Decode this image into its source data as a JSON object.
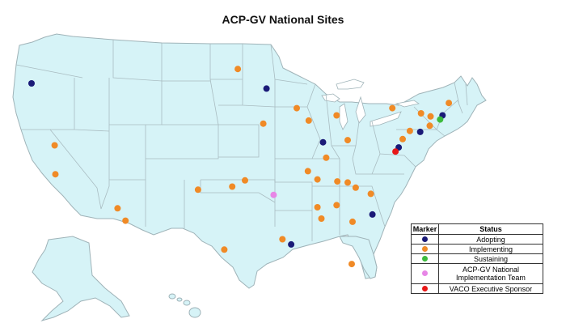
{
  "title": "ACP-GV National Sites",
  "colors": {
    "land": "#d6f3f7",
    "border": "#9fb3b8",
    "Adopting": "#1a1a78",
    "Implementing": "#f08a26",
    "Sustaining": "#3dbb3d",
    "ACP-GV National Implementation Team": "#e786e6",
    "VACO Executive Sponsor": "#e81818"
  },
  "legend": {
    "header_marker": "Marker",
    "header_status": "Status",
    "rows": [
      {
        "status": "Adopting",
        "label": "Adopting"
      },
      {
        "status": "Implementing",
        "label": "Implementing"
      },
      {
        "status": "Sustaining",
        "label": "Sustaining"
      },
      {
        "status": "ACP-GV National Implementation Team",
        "label": "ACP-GV National Implementation Team"
      },
      {
        "status": "VACO Executive Sponsor",
        "label": "VACO Executive Sponsor"
      }
    ]
  },
  "sites": [
    {
      "status": "Adopting",
      "lon": -122.7,
      "lat": 45.5
    },
    {
      "status": "Adopting",
      "lon": -93.2,
      "lat": 45.0
    },
    {
      "status": "Adopting",
      "lon": -86.1,
      "lat": 39.8
    },
    {
      "status": "Adopting",
      "lon": -73.9,
      "lat": 40.8
    },
    {
      "status": "Adopting",
      "lon": -76.6,
      "lat": 39.3
    },
    {
      "status": "Adopting",
      "lon": -71.1,
      "lat": 42.4
    },
    {
      "status": "Adopting",
      "lon": -90.1,
      "lat": 29.9
    },
    {
      "status": "Adopting",
      "lon": -79.9,
      "lat": 32.8
    },
    {
      "status": "Implementing",
      "lon": -96.8,
      "lat": 46.9
    },
    {
      "status": "Implementing",
      "lon": -119.8,
      "lat": 39.5
    },
    {
      "status": "Implementing",
      "lon": -119.7,
      "lat": 36.7
    },
    {
      "status": "Implementing",
      "lon": -111.9,
      "lat": 33.4
    },
    {
      "status": "Implementing",
      "lon": -110.9,
      "lat": 32.2
    },
    {
      "status": "Implementing",
      "lon": -101.8,
      "lat": 35.2
    },
    {
      "status": "Implementing",
      "lon": -97.5,
      "lat": 35.5
    },
    {
      "status": "Implementing",
      "lon": -95.9,
      "lat": 36.1
    },
    {
      "status": "Implementing",
      "lon": -98.5,
      "lat": 29.4
    },
    {
      "status": "Implementing",
      "lon": -93.6,
      "lat": 41.6
    },
    {
      "status": "Implementing",
      "lon": -89.4,
      "lat": 43.1
    },
    {
      "status": "Implementing",
      "lon": -87.9,
      "lat": 41.9
    },
    {
      "status": "Implementing",
      "lon": -85.7,
      "lat": 38.3
    },
    {
      "status": "Implementing",
      "lon": -88.0,
      "lat": 37.0
    },
    {
      "status": "Implementing",
      "lon": -86.8,
      "lat": 36.2
    },
    {
      "status": "Implementing",
      "lon": -84.3,
      "lat": 36.0
    },
    {
      "status": "Implementing",
      "lon": -83.0,
      "lat": 35.9
    },
    {
      "status": "Implementing",
      "lon": -82.0,
      "lat": 35.4
    },
    {
      "status": "Implementing",
      "lon": -80.1,
      "lat": 34.8
    },
    {
      "status": "Implementing",
      "lon": -86.8,
      "lat": 33.5
    },
    {
      "status": "Implementing",
      "lon": -86.3,
      "lat": 32.4
    },
    {
      "status": "Implementing",
      "lon": -84.4,
      "lat": 33.7
    },
    {
      "status": "Implementing",
      "lon": -82.4,
      "lat": 32.1
    },
    {
      "status": "Implementing",
      "lon": -82.5,
      "lat": 28.0
    },
    {
      "status": "Implementing",
      "lon": -91.2,
      "lat": 30.4
    },
    {
      "status": "Implementing",
      "lon": -83.0,
      "lat": 40.0
    },
    {
      "status": "Implementing",
      "lon": -84.4,
      "lat": 42.4
    },
    {
      "status": "Implementing",
      "lon": -77.4,
      "lat": 43.1
    },
    {
      "status": "Implementing",
      "lon": -73.8,
      "lat": 42.6
    },
    {
      "status": "Implementing",
      "lon": -72.6,
      "lat": 42.3
    },
    {
      "status": "Implementing",
      "lon": -70.3,
      "lat": 43.6
    },
    {
      "status": "Implementing",
      "lon": -72.7,
      "lat": 41.4
    },
    {
      "status": "Implementing",
      "lon": -75.2,
      "lat": 40.9
    },
    {
      "status": "Implementing",
      "lon": -76.1,
      "lat": 40.1
    },
    {
      "status": "Sustaining",
      "lon": -71.4,
      "lat": 42.0
    },
    {
      "status": "ACP-GV National Implementation Team",
      "lon": -92.3,
      "lat": 34.7
    },
    {
      "status": "VACO Executive Sponsor",
      "lon": -77.0,
      "lat": 38.9
    }
  ]
}
